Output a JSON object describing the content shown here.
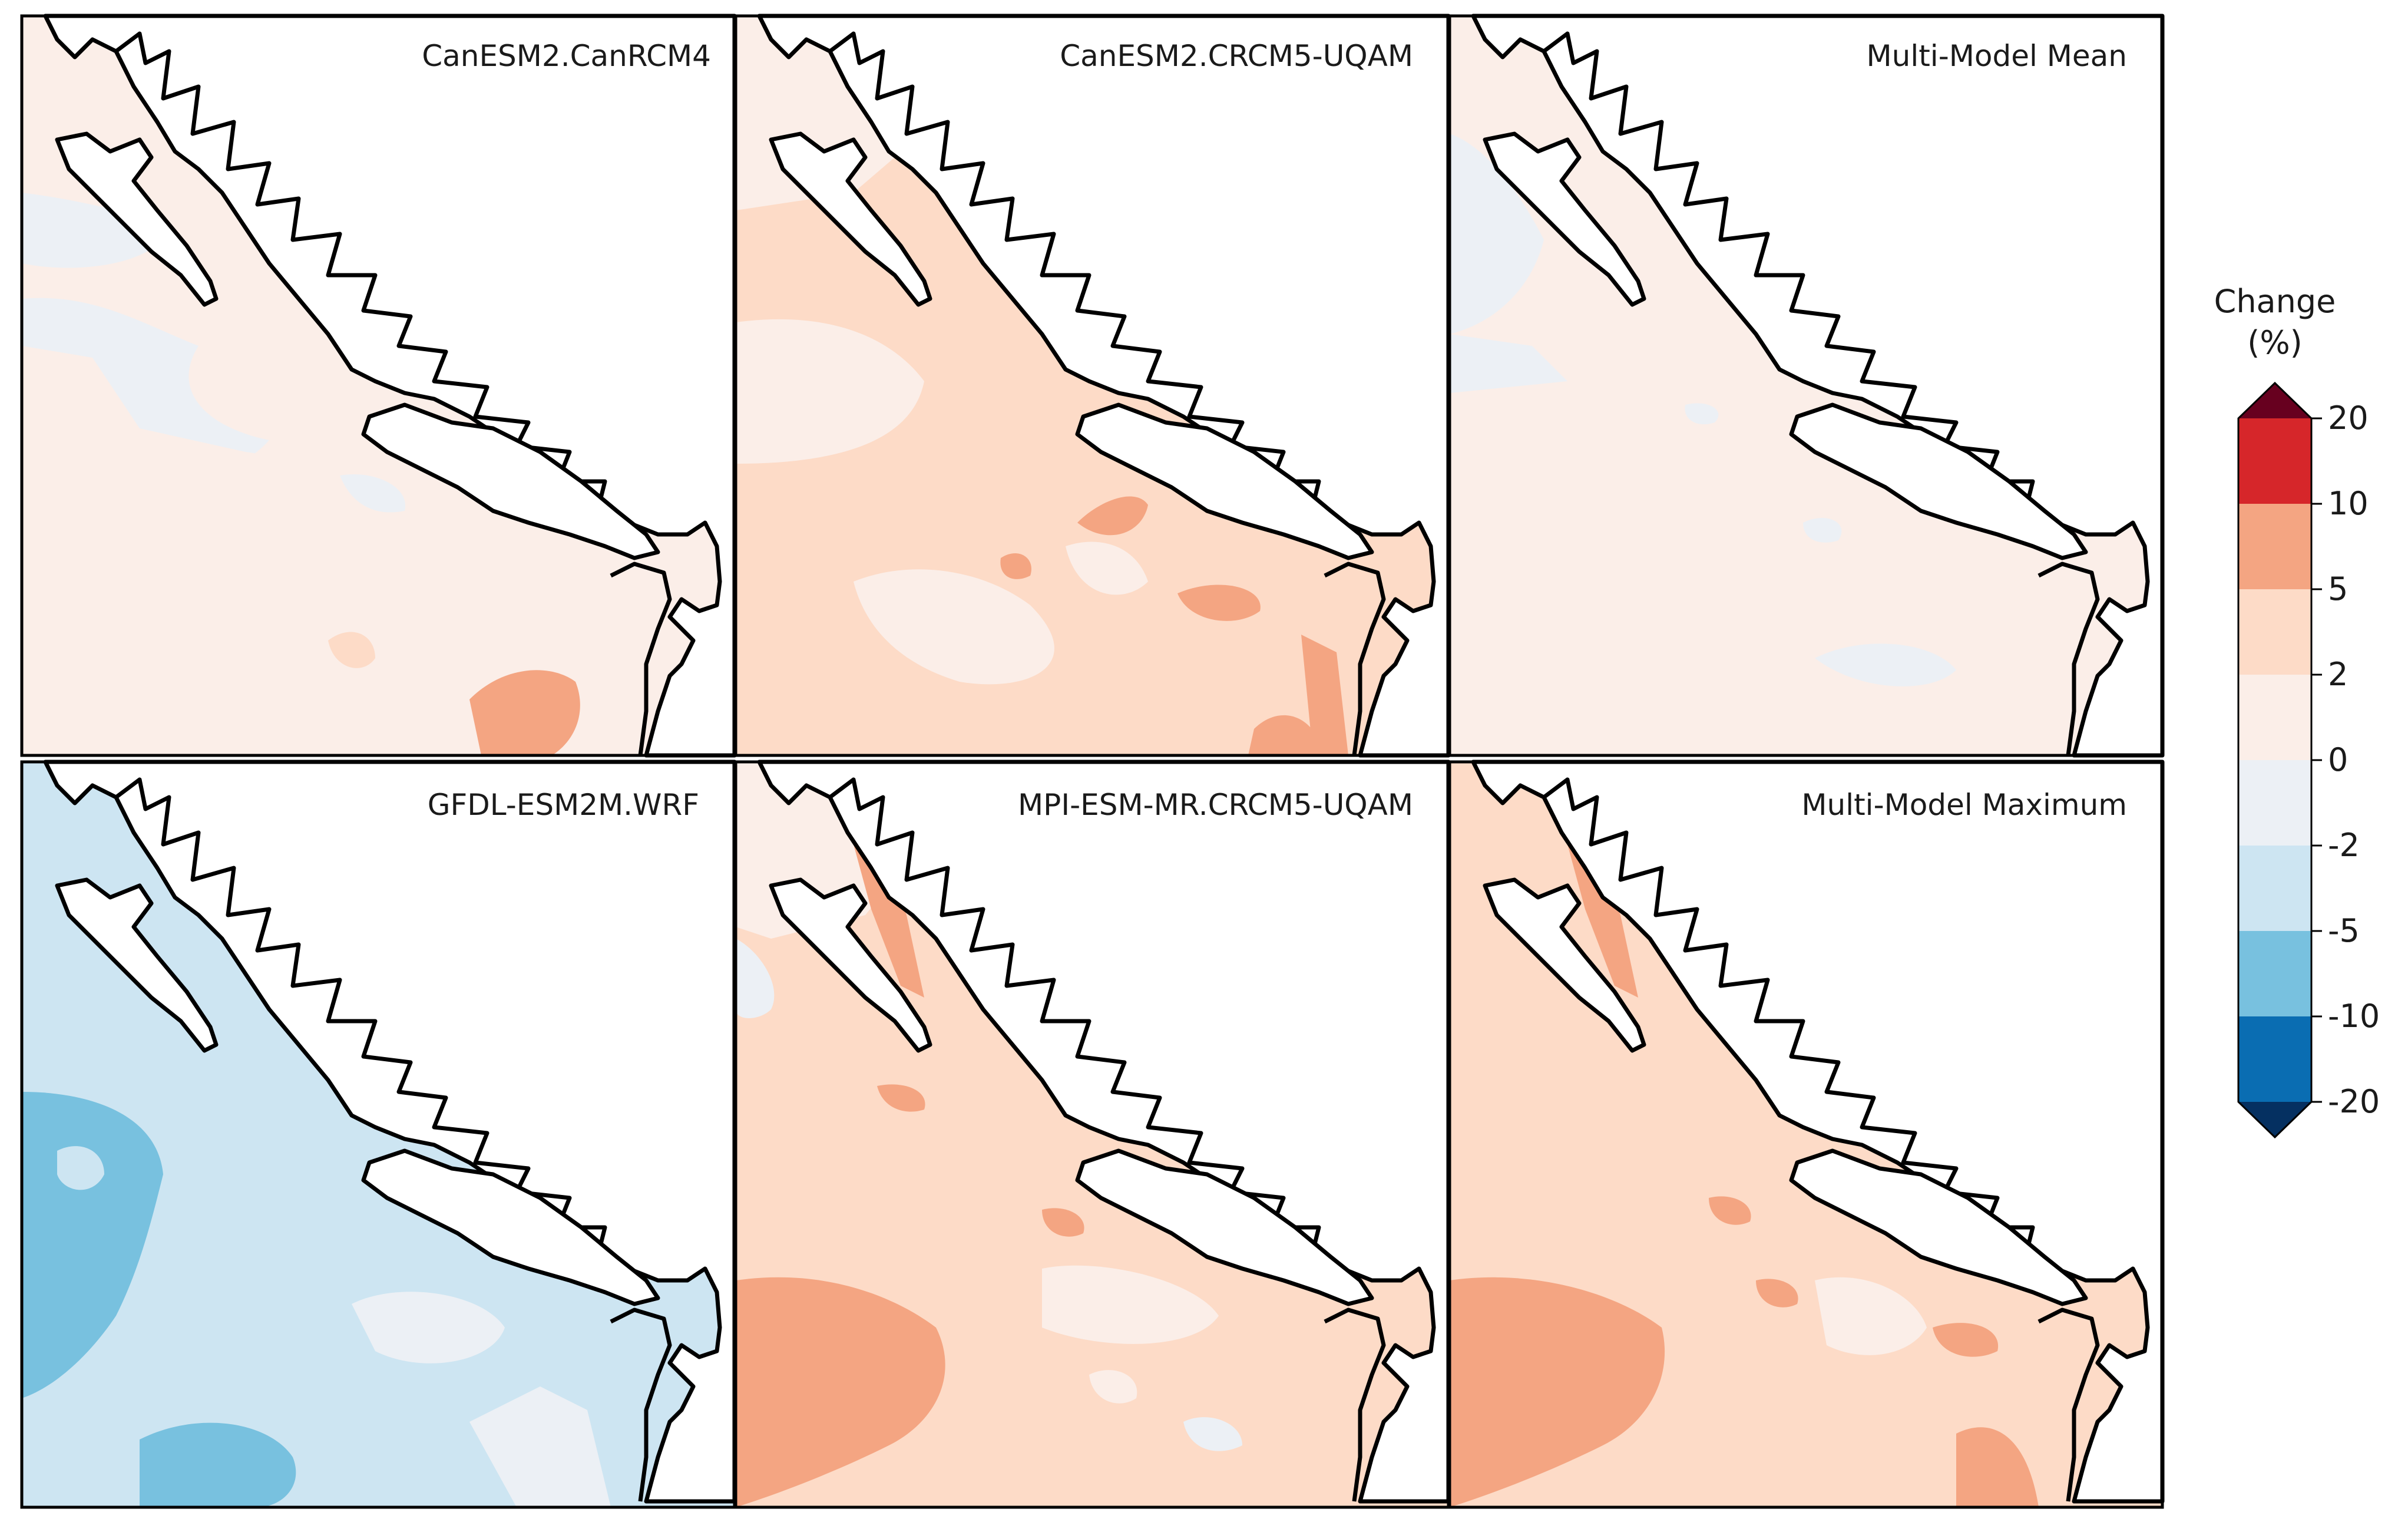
{
  "figure": {
    "panels": [
      {
        "title": "CanESM2.CanRCM4"
      },
      {
        "title": "CanESM2.CRCM5-UQAM"
      },
      {
        "title": "Multi-Model Mean"
      },
      {
        "title": "GFDL-ESM2M.WRF"
      },
      {
        "title": "MPI-ESM-MR.CRCM5-UQAM"
      },
      {
        "title": "Multi-Model Maximum"
      }
    ],
    "colorbar": {
      "title_line1": "Change",
      "title_line2": "(%)",
      "ticks": [
        "20",
        "10",
        "5",
        "2",
        "0",
        "-2",
        "-5",
        "-10",
        "-20"
      ],
      "bins": [
        {
          "range": "> 20",
          "color": "#67001f"
        },
        {
          "range": "10 to 20",
          "color": "#d6262a"
        },
        {
          "range": "5 to 10",
          "color": "#f4a582"
        },
        {
          "range": "2 to 5",
          "color": "#fddbc7"
        },
        {
          "range": "0 to 2",
          "color": "#fbeee8"
        },
        {
          "range": "-2 to 0",
          "color": "#ecf0f5"
        },
        {
          "range": "-5 to -2",
          "color": "#cde5f2"
        },
        {
          "range": "-10 to -5",
          "color": "#78c1df"
        },
        {
          "range": "-20 to -10",
          "color": "#0a6db2"
        },
        {
          "range": "< -20",
          "color": "#053061"
        }
      ]
    }
  }
}
